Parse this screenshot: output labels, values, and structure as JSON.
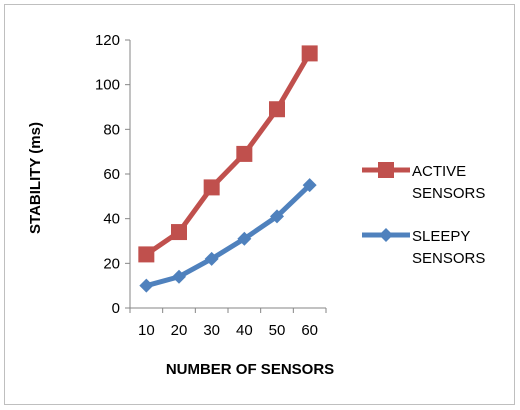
{
  "chart_data": {
    "type": "line",
    "categories": [
      "10",
      "20",
      "30",
      "40",
      "50",
      "60"
    ],
    "series": [
      {
        "name": "ACTIVE SENSORS",
        "name_lines": [
          "ACTIVE",
          "SENSORS"
        ],
        "values": [
          24,
          34,
          54,
          69,
          89,
          114
        ],
        "color": "#c0504d",
        "marker": "square"
      },
      {
        "name": "SLEEPY SENSORS",
        "name_lines": [
          "SLEEPY",
          "SENSORS"
        ],
        "values": [
          10,
          14,
          22,
          31,
          41,
          55
        ],
        "color": "#4f81bd",
        "marker": "diamond"
      }
    ],
    "xlabel": "NUMBER OF SENSORS",
    "ylabel": "STABILITY (ms)",
    "ylim": [
      0,
      120
    ],
    "yticks": [
      0,
      20,
      40,
      60,
      80,
      100,
      120
    ],
    "grid": false,
    "legend_position": "right"
  }
}
